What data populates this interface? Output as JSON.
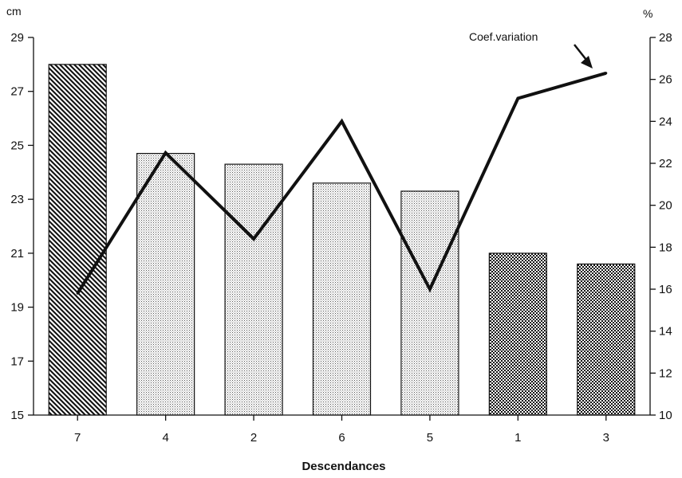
{
  "chart_data": {
    "type": "bar",
    "categories": [
      "7",
      "4",
      "2",
      "6",
      "5",
      "1",
      "3"
    ],
    "xlabel": "Descendances",
    "left_axis": {
      "unit": "cm",
      "range": [
        15,
        29
      ],
      "ticks": [
        "15",
        "17",
        "19",
        "21",
        "23",
        "25",
        "27",
        "29"
      ]
    },
    "right_axis": {
      "unit": "%",
      "range": [
        10,
        28
      ],
      "ticks": [
        "10",
        "12",
        "14",
        "16",
        "18",
        "20",
        "22",
        "24",
        "26",
        "28"
      ]
    },
    "bars": [
      {
        "category": "7",
        "value": 28.0,
        "pattern": "diagonal"
      },
      {
        "category": "4",
        "value": 24.7,
        "pattern": "dots"
      },
      {
        "category": "2",
        "value": 24.3,
        "pattern": "dots"
      },
      {
        "category": "6",
        "value": 23.6,
        "pattern": "dots"
      },
      {
        "category": "5",
        "value": 23.3,
        "pattern": "dots"
      },
      {
        "category": "1",
        "value": 21.0,
        "pattern": "checker"
      },
      {
        "category": "3",
        "value": 20.6,
        "pattern": "checker"
      }
    ],
    "line": {
      "axis": "right",
      "values": [
        15.8,
        22.5,
        18.4,
        24.0,
        16.0,
        25.1,
        26.3
      ]
    },
    "annotation": "Coef.variation",
    "grid": false
  }
}
